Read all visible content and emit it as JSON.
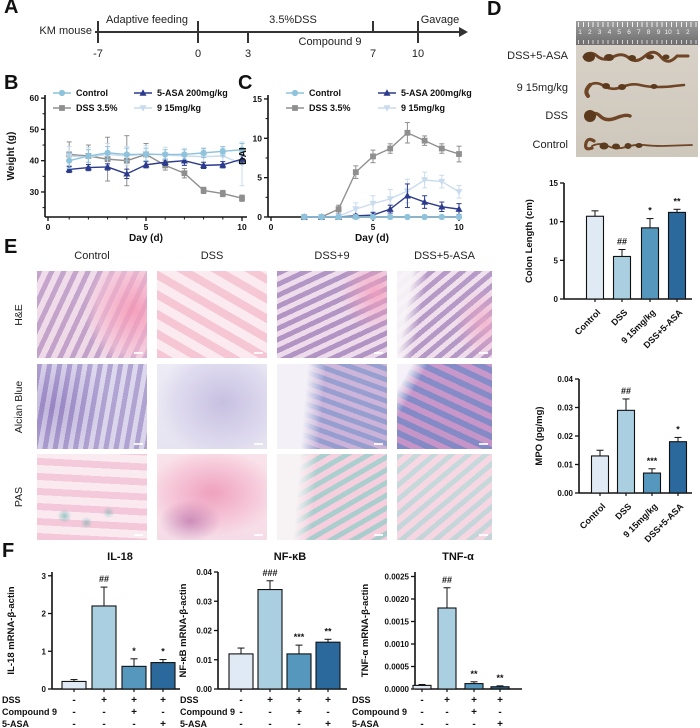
{
  "figure": {
    "panels": {
      "a": "A",
      "b": "B",
      "c": "C",
      "d": "D",
      "e": "E",
      "f": "F"
    }
  },
  "panelA": {
    "subject": "KM mouse",
    "phase_labels": [
      "Adaptive feeding",
      "3.5%DSS",
      "Compound 9",
      "Gavage"
    ],
    "tick_labels": [
      "-7",
      "0",
      "3",
      "7",
      "10"
    ]
  },
  "panelD": {
    "photo": {
      "ruler_numbers": [
        "1",
        "2",
        "3",
        "4",
        "5",
        "6",
        "7",
        "8",
        "9",
        "10",
        "1",
        "2"
      ],
      "specimen_labels": [
        "DSS+5-ASA",
        "9 15mg/kg",
        "DSS",
        "Control"
      ]
    }
  },
  "panelE": {
    "column_headers": [
      "Control",
      "DSS",
      "DSS+9",
      "DSS+5-ASA"
    ],
    "row_labels": [
      "H&E",
      "Alcian Blue",
      "PAS"
    ]
  },
  "panelF": {
    "condition_rows": [
      {
        "label": "DSS",
        "values": [
          "-",
          "+",
          "+",
          "+"
        ]
      },
      {
        "label": "Compound 9",
        "values": [
          "-",
          "-",
          "+",
          "-"
        ]
      },
      {
        "label": "5-ASA",
        "values": [
          "-",
          "-",
          "-",
          "+"
        ]
      }
    ]
  },
  "palette": {
    "axis": "#111111",
    "bar_colors": [
      "#dfeaf4",
      "#a9cfe0",
      "#5697bd",
      "#2b689c"
    ],
    "control": "#8fc3dc",
    "dss": "#8f8f8f",
    "asa": "#2b3a8c",
    "compound9": "#c9dcee"
  },
  "chart_data": [
    {
      "id": "weight",
      "type": "line",
      "xlabel": "Day (d)",
      "ylabel": "Weight (g)",
      "xlim": [
        0,
        10.3
      ],
      "ylim": [
        22,
        61
      ],
      "xticks": [
        0,
        5,
        10
      ],
      "yticks": [
        30,
        40,
        50,
        60
      ],
      "x": [
        1,
        2,
        3,
        4,
        5,
        6,
        7,
        8,
        9,
        10
      ],
      "series": [
        {
          "name": "Control",
          "marker": "circle",
          "color": "#8fc3dc",
          "values": [
            40,
            41.5,
            42.5,
            42,
            42,
            42,
            42,
            42.5,
            43,
            43.5
          ],
          "errors": [
            2.5,
            2,
            2,
            2,
            2,
            1.5,
            1.5,
            1.5,
            1.5,
            2
          ]
        },
        {
          "name": "DSS 3.5%",
          "marker": "square",
          "color": "#8f8f8f",
          "values": [
            42,
            41.5,
            40.5,
            40,
            42,
            38.5,
            36,
            30.5,
            29.5,
            28
          ],
          "errors": [
            4,
            3.5,
            7,
            8,
            3.5,
            1.5,
            1.5,
            1,
            1,
            1
          ]
        },
        {
          "name": "5-ASA 200mg/kg",
          "marker": "triangle",
          "color": "#2b3a8c",
          "values": [
            37.2,
            37.8,
            38,
            35.8,
            38.7,
            39.5,
            40,
            38.5,
            38.7,
            40.5
          ],
          "errors": [
            1,
            1,
            1,
            1.5,
            1,
            1,
            1.5,
            1,
            1,
            1.5
          ]
        },
        {
          "name": "9 15mg/kg",
          "marker": "triangle-down",
          "color": "#c9dcee",
          "values": [
            41.5,
            41.2,
            42,
            41.5,
            42.3,
            41.8,
            41.5,
            41.3,
            41.5,
            39
          ],
          "errors": [
            3,
            3,
            3.5,
            3,
            2.5,
            2.5,
            2.5,
            2.5,
            2.5,
            7
          ]
        }
      ]
    },
    {
      "id": "dai",
      "type": "line",
      "xlabel": "Day (d)",
      "ylabel": "DAI",
      "xlim": [
        0,
        10.3
      ],
      "ylim": [
        0,
        15.5
      ],
      "xticks": [
        0,
        5,
        10
      ],
      "yticks": [
        0,
        5,
        10,
        15
      ],
      "x": [
        1,
        2,
        3,
        4,
        5,
        6,
        7,
        8,
        9,
        10
      ],
      "series": [
        {
          "name": "Control",
          "marker": "circle",
          "color": "#8fc3dc",
          "values": [
            0,
            0,
            0,
            0,
            0,
            0,
            0,
            0,
            0,
            0
          ],
          "errors": [
            0.25,
            0.25,
            0.25,
            0.25,
            0.25,
            0.25,
            0.25,
            0.25,
            0.25,
            0.25
          ]
        },
        {
          "name": "DSS 3.5%",
          "marker": "square",
          "color": "#8f8f8f",
          "values": [
            0,
            0,
            1,
            5.7,
            7.7,
            8.7,
            10.7,
            9.7,
            8.7,
            8
          ],
          "errors": [
            0.15,
            0.15,
            0.5,
            0.8,
            0.8,
            0.6,
            1.3,
            0.6,
            0.6,
            1
          ]
        },
        {
          "name": "5-ASA 200mg/kg",
          "marker": "triangle",
          "color": "#2b3a8c",
          "values": [
            0,
            0,
            0,
            0.15,
            0.25,
            1,
            2.7,
            1.9,
            1.3,
            1
          ],
          "errors": [
            0.1,
            0.1,
            0.1,
            0.2,
            0.3,
            0.5,
            1.5,
            0.8,
            0.6,
            0.7
          ]
        },
        {
          "name": "9 15mg/kg",
          "marker": "triangle-down",
          "color": "#c9dcee",
          "values": [
            0,
            0,
            0.1,
            1,
            1.7,
            2.3,
            3.3,
            4.7,
            4.5,
            3.2
          ],
          "errors": [
            0.1,
            0.1,
            0.3,
            0.8,
            1,
            1.2,
            1.5,
            1,
            0.8,
            0.8
          ]
        }
      ]
    },
    {
      "id": "colon_length",
      "type": "bar",
      "ylabel": "Colon Length (cm)",
      "ylim": [
        0,
        15
      ],
      "ytick_values": [
        0,
        5,
        10,
        15
      ],
      "ytick_labels": [
        "0",
        "5",
        "10",
        "15"
      ],
      "categories": [
        "Control",
        "DSS",
        "9 15mg/kg",
        "DSS+5-ASA"
      ],
      "values": [
        10.7,
        5.5,
        9.2,
        11.2
      ],
      "errors": [
        0.7,
        0.9,
        1.2,
        0.4
      ],
      "sig": [
        "",
        "##",
        "*",
        "**"
      ]
    },
    {
      "id": "mpo",
      "type": "bar",
      "ylabel": "MPO (pg/mg)",
      "ylim": [
        0,
        0.04
      ],
      "ytick_values": [
        0,
        0.01,
        0.02,
        0.03,
        0.04
      ],
      "ytick_labels": [
        "0.00",
        "0.01",
        "0.02",
        "0.03",
        "0.04"
      ],
      "categories": [
        "Control",
        "DSS",
        "9 15mg/kg",
        "DSS+5-ASA"
      ],
      "values": [
        0.013,
        0.029,
        0.007,
        0.018
      ],
      "errors": [
        0.002,
        0.004,
        0.0015,
        0.0015
      ],
      "sig": [
        "",
        "##",
        "***",
        "*"
      ]
    },
    {
      "id": "il18",
      "type": "bar",
      "title": "IL-18",
      "ylabel": "IL-18 mRNA-β-actin",
      "ylim": [
        0,
        3.1
      ],
      "ytick_values": [
        0,
        1,
        2,
        3
      ],
      "ytick_labels": [
        "0",
        "1",
        "2",
        "3"
      ],
      "categories": [
        "Control",
        "DSS",
        "DSS+Compound 9",
        "DSS+5-ASA"
      ],
      "values": [
        0.2,
        2.2,
        0.6,
        0.7
      ],
      "errors": [
        0.05,
        0.5,
        0.2,
        0.08
      ],
      "sig": [
        "",
        "##",
        "*",
        "*"
      ]
    },
    {
      "id": "nfkb",
      "type": "bar",
      "title": "NF-κB",
      "ylabel": "NF-κB mRNA-β-actin",
      "ylim": [
        0,
        0.04
      ],
      "ytick_values": [
        0,
        0.01,
        0.02,
        0.03,
        0.04
      ],
      "ytick_labels": [
        "0.00",
        "0.01",
        "0.02",
        "0.03",
        "0.04"
      ],
      "categories": [
        "Control",
        "DSS",
        "DSS+Compound 9",
        "DSS+5-ASA"
      ],
      "values": [
        0.012,
        0.034,
        0.012,
        0.016
      ],
      "errors": [
        0.002,
        0.003,
        0.003,
        0.001
      ],
      "sig": [
        "",
        "###",
        "***",
        "**"
      ]
    },
    {
      "id": "tnfa",
      "type": "bar",
      "title": "TNF-α",
      "ylabel": "TNF-α mRNA-β-actin",
      "ylim": [
        0,
        0.0026
      ],
      "ytick_values": [
        0,
        0.0005,
        0.001,
        0.0015,
        0.002,
        0.0025
      ],
      "ytick_labels": [
        "0.0000",
        "0.0005",
        "0.0010",
        "0.0015",
        "0.0020",
        "0.0025"
      ],
      "categories": [
        "Control",
        "DSS",
        "DSS+Compound 9",
        "DSS+5-ASA"
      ],
      "values": [
        8e-05,
        0.0018,
        0.00012,
        5e-05
      ],
      "errors": [
        2e-05,
        0.00045,
        4e-05,
        2e-05
      ],
      "sig": [
        "",
        "##",
        "**",
        "**"
      ]
    }
  ]
}
